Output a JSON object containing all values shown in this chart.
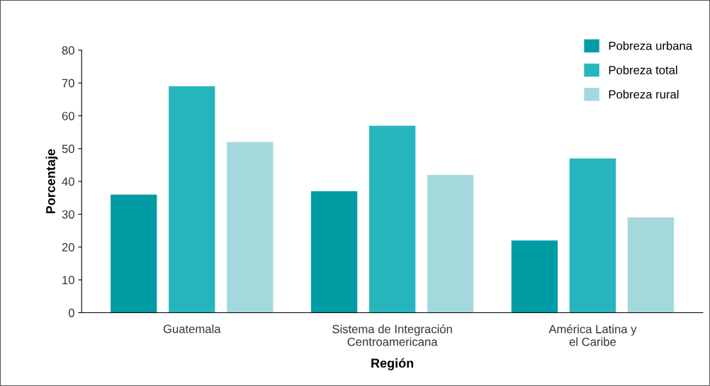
{
  "chart_data": {
    "type": "bar",
    "xlabel": "Región",
    "ylabel": "Porcentaje",
    "categories": [
      "Guatemala",
      "Sistema de Integración\nCentroamericana",
      "América Latina y\nel Caribe"
    ],
    "series": [
      {
        "name": "Pobreza urbana",
        "color": "#009ca6",
        "values": [
          36,
          37,
          22
        ]
      },
      {
        "name": "Pobreza total",
        "color": "#26b5bd",
        "values": [
          69,
          57,
          47
        ]
      },
      {
        "name": "Pobreza rural",
        "color": "#a3d9dc",
        "values": [
          52,
          42,
          29
        ]
      }
    ],
    "ylim": [
      0,
      80
    ],
    "yticks": [
      0,
      10,
      20,
      30,
      40,
      50,
      60,
      70,
      80
    ],
    "grid": false,
    "legend": "top right"
  }
}
